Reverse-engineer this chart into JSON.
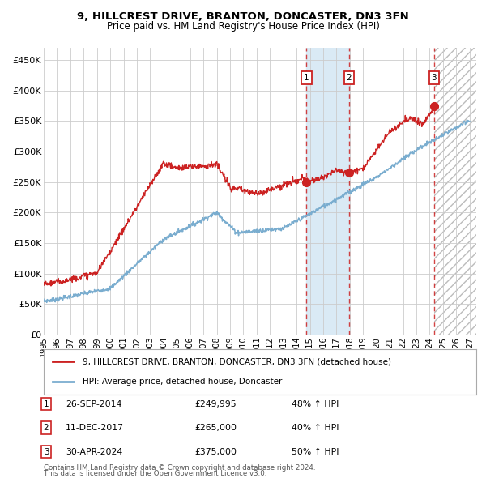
{
  "title": "9, HILLCREST DRIVE, BRANTON, DONCASTER, DN3 3FN",
  "subtitle": "Price paid vs. HM Land Registry's House Price Index (HPI)",
  "xlim_start": 1995.0,
  "xlim_end": 2027.5,
  "ylim": [
    0,
    470000
  ],
  "yticks": [
    0,
    50000,
    100000,
    150000,
    200000,
    250000,
    300000,
    350000,
    400000,
    450000
  ],
  "ytick_labels": [
    "£0",
    "£50K",
    "£100K",
    "£150K",
    "£200K",
    "£250K",
    "£300K",
    "£350K",
    "£400K",
    "£450K"
  ],
  "xtick_years": [
    1995,
    1996,
    1997,
    1998,
    1999,
    2000,
    2001,
    2002,
    2003,
    2004,
    2005,
    2006,
    2007,
    2008,
    2009,
    2010,
    2011,
    2012,
    2013,
    2014,
    2015,
    2016,
    2017,
    2018,
    2019,
    2020,
    2021,
    2022,
    2023,
    2024,
    2025,
    2026,
    2027
  ],
  "hpi_line_color": "#7aadcf",
  "price_line_color": "#cc2222",
  "dot_color": "#cc2222",
  "grid_color": "#cccccc",
  "purchase_dates": [
    2014.74,
    2017.94,
    2024.33
  ],
  "purchase_prices": [
    249995,
    265000,
    375000
  ],
  "purchase_labels": [
    "1",
    "2",
    "3"
  ],
  "purchase_info": [
    {
      "label": "1",
      "date": "26-SEP-2014",
      "price": "£249,995",
      "hpi": "48% ↑ HPI"
    },
    {
      "label": "2",
      "date": "11-DEC-2017",
      "price": "£265,000",
      "hpi": "40% ↑ HPI"
    },
    {
      "label": "3",
      "date": "30-APR-2024",
      "price": "£375,000",
      "hpi": "50% ↑ HPI"
    }
  ],
  "legend_line1": "9, HILLCREST DRIVE, BRANTON, DONCASTER, DN3 3FN (detached house)",
  "legend_line2": "HPI: Average price, detached house, Doncaster",
  "footnote1": "Contains HM Land Registry data © Crown copyright and database right 2024.",
  "footnote2": "This data is licensed under the Open Government Licence v3.0.",
  "shaded_region_color": "#daeaf5",
  "between_start": 2014.74,
  "between_end": 2017.94,
  "future_start": 2024.33,
  "future_end": 2027.5
}
